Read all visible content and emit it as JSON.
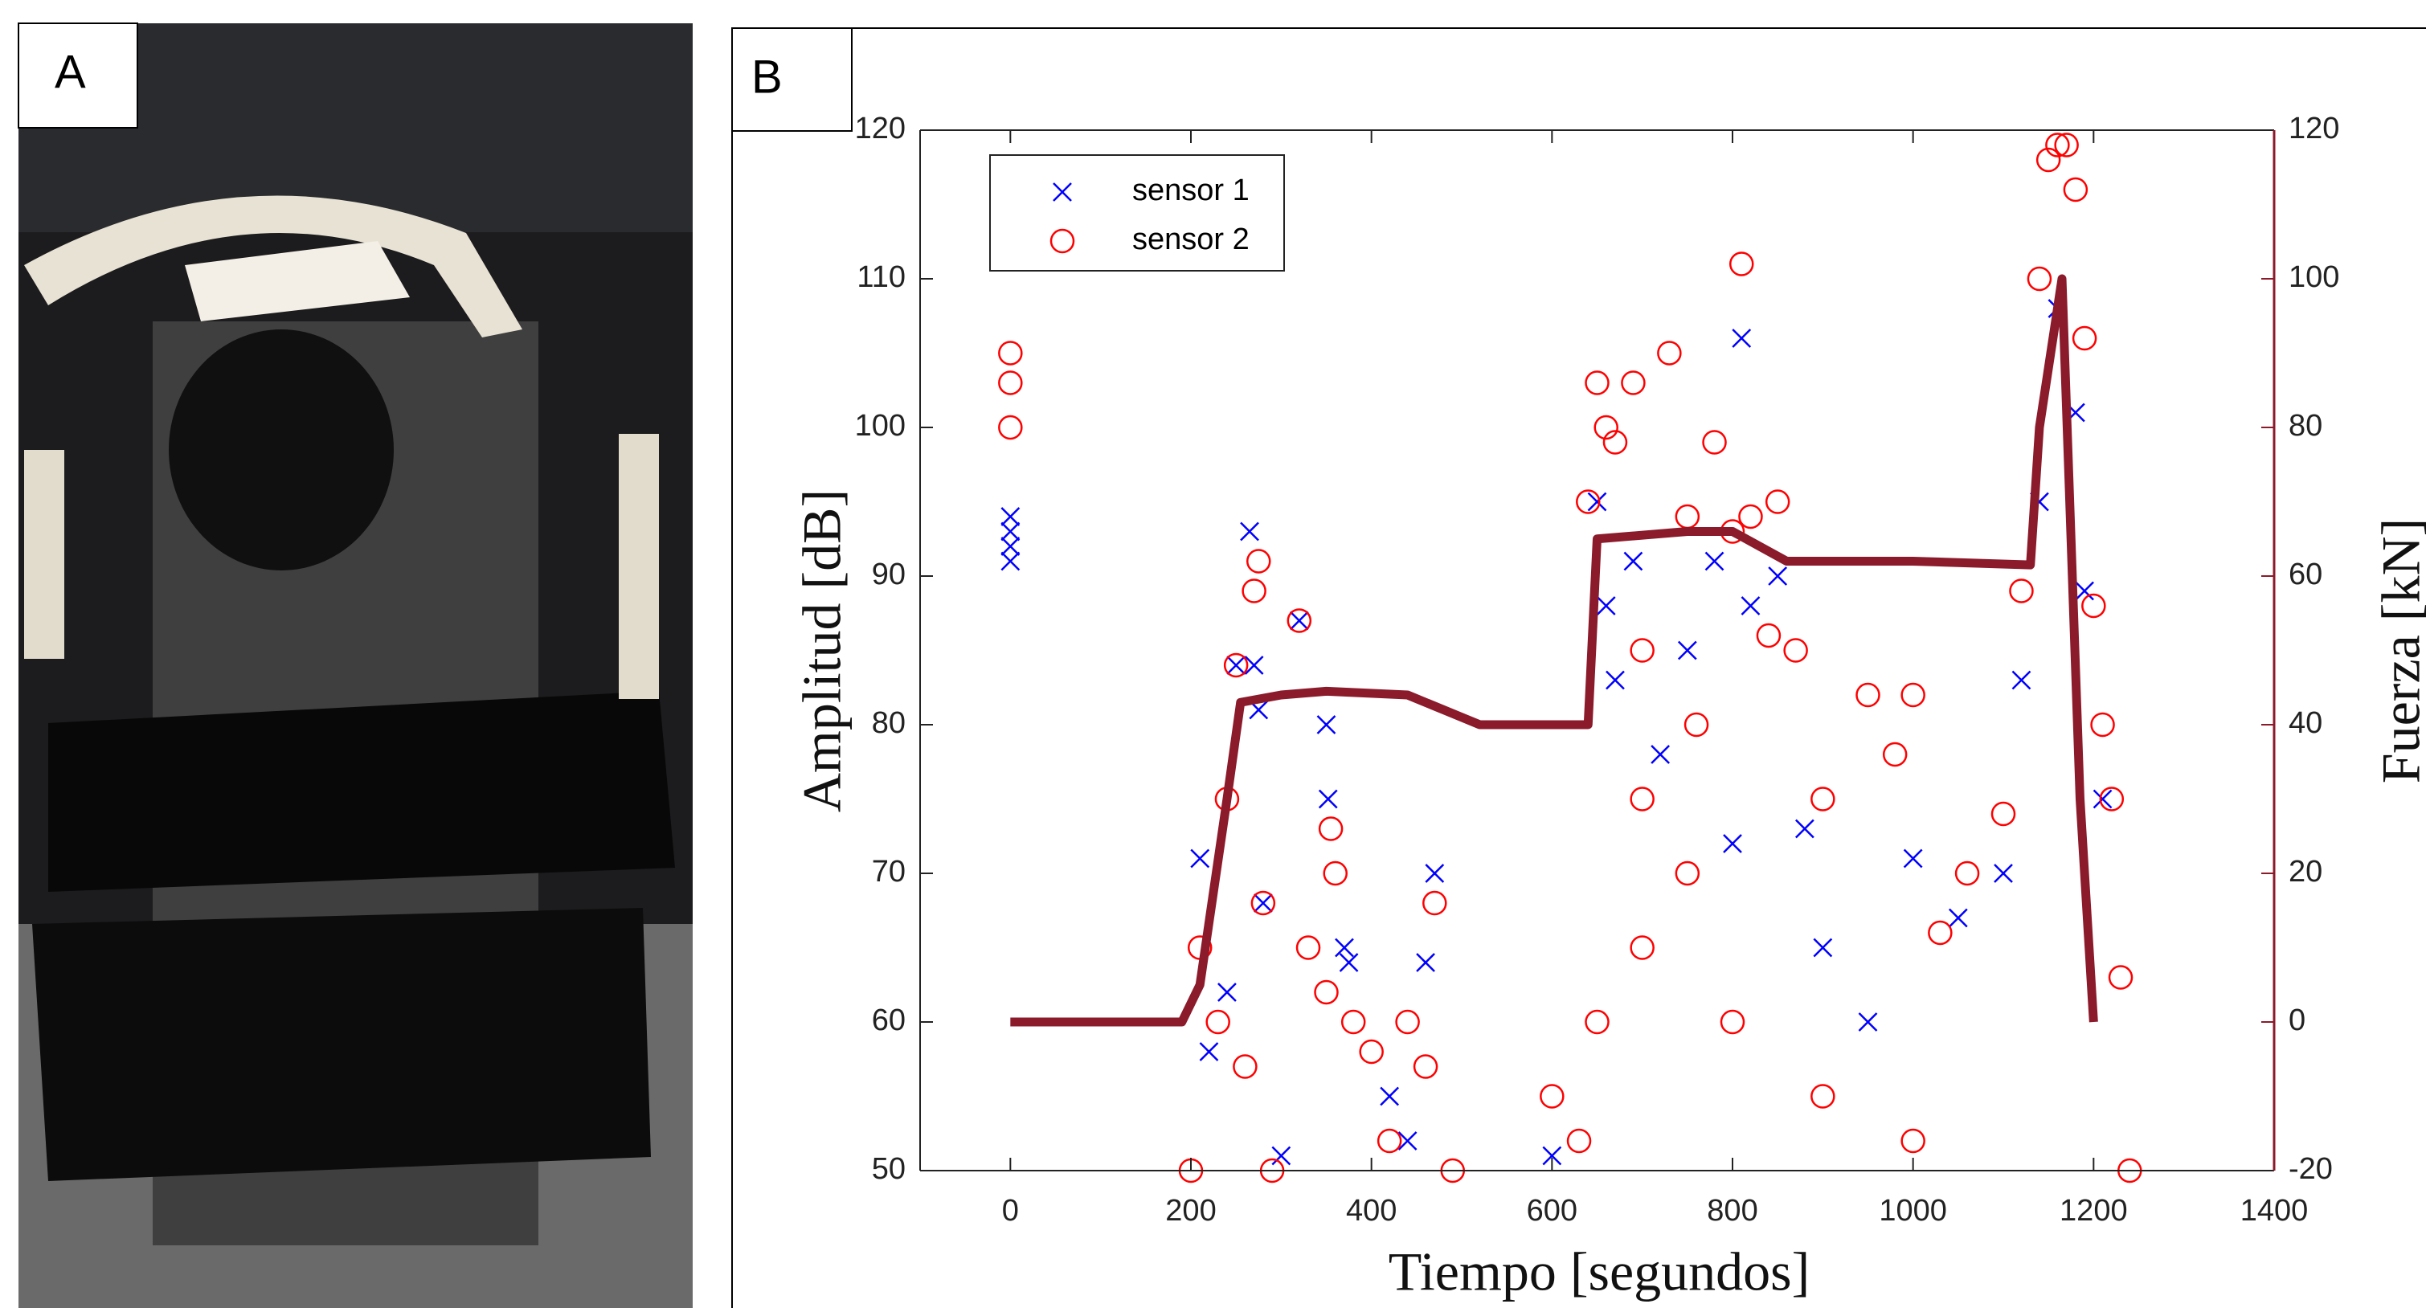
{
  "panel_labels": [
    "A",
    "B"
  ],
  "chart_data": {
    "type": "scatter",
    "x_label": "Tiempo [segundos]",
    "y_label": "Amplitud [dB]",
    "y2_label": "Fuerza [kN]",
    "xlim": [
      -100,
      1400
    ],
    "xticks": [
      0,
      200,
      400,
      600,
      800,
      1000,
      1200,
      1400
    ],
    "ylim": [
      50,
      120
    ],
    "yticks": [
      50,
      60,
      70,
      80,
      90,
      100,
      110,
      120
    ],
    "y2lim": [
      -20,
      120
    ],
    "y2ticks": [
      -20,
      0,
      20,
      40,
      60,
      80,
      100,
      120
    ],
    "legend": "upper left",
    "series": [
      {
        "name": "sensor 1",
        "color": "#0000ff",
        "marker": "x",
        "x": [
          0,
          0,
          0,
          0,
          210,
          250,
          265,
          270,
          275,
          280,
          220,
          240,
          300,
          320,
          350,
          352,
          370,
          375,
          420,
          440,
          460,
          470,
          600,
          650,
          660,
          670,
          690,
          720,
          750,
          780,
          800,
          810,
          820,
          850,
          880,
          900,
          950,
          1000,
          1050,
          1100,
          1120,
          1140,
          1160,
          1180,
          1190,
          1210
        ],
        "values": [
          94,
          93,
          92,
          91,
          71,
          84,
          93,
          84,
          81,
          68,
          58,
          62,
          51,
          87,
          80,
          75,
          65,
          64,
          55,
          52,
          64,
          70,
          51,
          95,
          88,
          83,
          91,
          78,
          85,
          91,
          72,
          106,
          88,
          90,
          73,
          65,
          60,
          71,
          67,
          70,
          83,
          95,
          108,
          101,
          89,
          75
        ]
      },
      {
        "name": "sensor 2",
        "color": "#ff0000",
        "marker": "o",
        "x": [
          0,
          0,
          0,
          200,
          210,
          230,
          240,
          250,
          260,
          270,
          275,
          280,
          290,
          320,
          330,
          350,
          355,
          360,
          380,
          400,
          420,
          440,
          460,
          470,
          490,
          600,
          630,
          640,
          650,
          660,
          670,
          690,
          700,
          730,
          750,
          780,
          800,
          810,
          820,
          840,
          850,
          870,
          900,
          950,
          980,
          1000,
          1030,
          1060,
          1100,
          1120,
          1140,
          1150,
          1160,
          1170,
          1180,
          1190,
          1200,
          1210,
          1220,
          1230,
          1240,
          700,
          750,
          800,
          900,
          1000,
          650,
          700,
          760
        ],
        "values": [
          105,
          103,
          100,
          50,
          65,
          60,
          75,
          84,
          57,
          89,
          91,
          68,
          50,
          87,
          65,
          62,
          73,
          70,
          60,
          58,
          52,
          60,
          57,
          68,
          50,
          55,
          52,
          95,
          103,
          100,
          99,
          103,
          85,
          105,
          94,
          99,
          93,
          111,
          94,
          86,
          95,
          85,
          75,
          82,
          78,
          82,
          66,
          70,
          74,
          89,
          110,
          118,
          119,
          119,
          116,
          106,
          88,
          80,
          75,
          63,
          50,
          65,
          70,
          60,
          55,
          52,
          60,
          75,
          80
        ]
      },
      {
        "type": "line",
        "axis": "y2",
        "color": "#8b1a2b",
        "x": [
          0,
          150,
          190,
          210,
          240,
          255,
          300,
          350,
          440,
          520,
          640,
          650,
          750,
          800,
          860,
          1000,
          1130,
          1140,
          1165,
          1185,
          1200
        ],
        "values": [
          0,
          0,
          0,
          5,
          30,
          43,
          44,
          44.5,
          44,
          40,
          40,
          65,
          66,
          66,
          62,
          62,
          61.5,
          80,
          100,
          30,
          0
        ]
      }
    ]
  }
}
